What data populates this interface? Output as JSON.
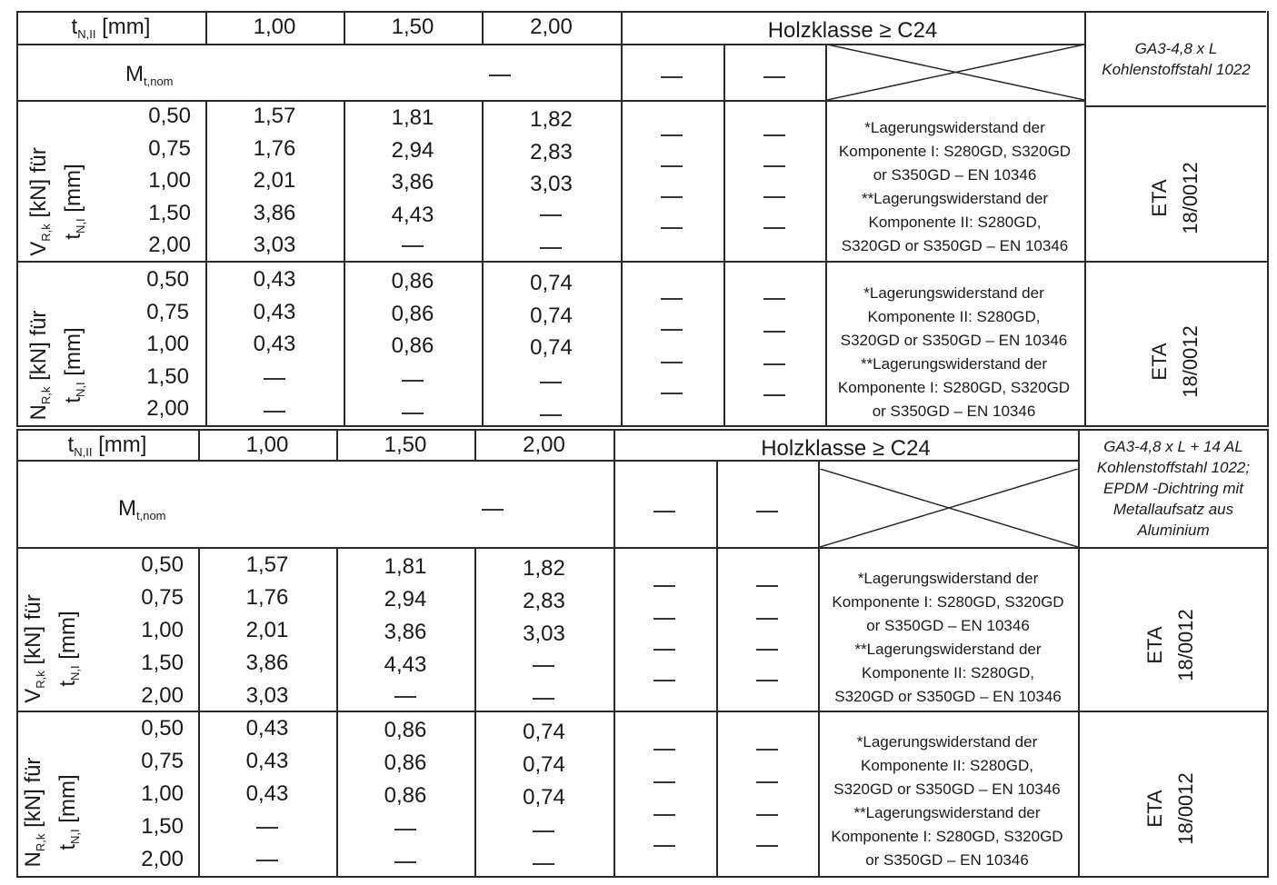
{
  "header": {
    "tN2": "t",
    "tN2_sub": "N,II",
    "tN2_unit": "[mm]",
    "cols": [
      "1,00",
      "1,50",
      "2,00"
    ],
    "wood_class": "Holzklasse ≥ C24"
  },
  "mt": {
    "label": "M",
    "sub": "t,nom",
    "value": "—"
  },
  "dash": "—",
  "rows_label": {
    "v_main": "V",
    "v_sub": "R,k",
    "v_tail": "[kN] für",
    "n_main": "N",
    "n_sub": "R,k",
    "n_tail": "[kN] für",
    "t_main": "t",
    "t_sub": "N,I",
    "t_unit": "[mm]"
  },
  "thicknesses": [
    "0,50",
    "0,75",
    "1,00",
    "1,50",
    "2,00"
  ],
  "v_values": [
    [
      "1,57",
      "1,81",
      "1,82"
    ],
    [
      "1,76",
      "2,94",
      "2,83"
    ],
    [
      "2,01",
      "3,86",
      "3,03"
    ],
    [
      "3,86",
      "4,43",
      "—"
    ],
    [
      "3,03",
      "—",
      "—"
    ]
  ],
  "n_values": [
    [
      "0,43",
      "0,86",
      "0,74"
    ],
    [
      "0,43",
      "0,86",
      "0,74"
    ],
    [
      "0,43",
      "0,86",
      "0,74"
    ],
    [
      "—",
      "—",
      "—"
    ],
    [
      "—",
      "—",
      "—"
    ]
  ],
  "notes": {
    "v": [
      "*Lagerungswiderstand der",
      "Komponente I: S280GD, S320GD",
      "or S350GD – EN 10346",
      "**Lagerungswiderstand der",
      "Komponente II: S280GD,",
      "S320GD or S350GD – EN 10346"
    ],
    "n": [
      "*Lagerungswiderstand der",
      "Komponente II: S280GD,",
      "S320GD or S350GD – EN 10346",
      "**Lagerungswiderstand der",
      "Komponente I: S280GD, S320GD",
      "or S350GD – EN 10346"
    ]
  },
  "eta": [
    "ETA",
    "18/0012"
  ],
  "product1": [
    "GA3-4,8 x L",
    "Kohlenstoffstahl 1022"
  ],
  "product2": [
    "GA3-4,8 x L + 14 AL",
    "Kohlenstoffstahl 1022;",
    "EPDM -Dichtring mit",
    "Metallaufsatz aus",
    "Aluminium"
  ]
}
